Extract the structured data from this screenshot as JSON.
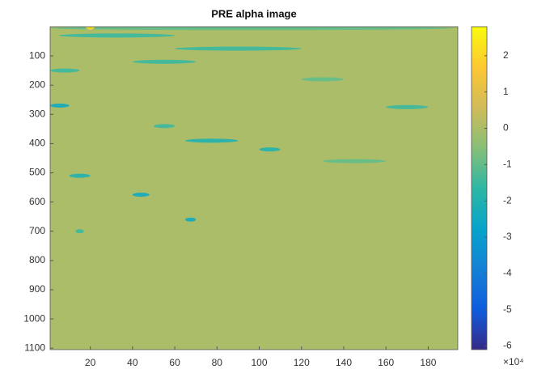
{
  "chart_data": {
    "type": "image",
    "title": "PRE alpha image",
    "xlim": [
      1,
      194
    ],
    "xticks": [
      20,
      40,
      60,
      80,
      100,
      120,
      140,
      160,
      180
    ],
    "ylim": [
      0,
      1105
    ],
    "yticks": [
      100,
      200,
      300,
      400,
      500,
      600,
      700,
      800,
      900,
      1000,
      1100
    ],
    "background_value": 0,
    "streaks": [
      {
        "x": [
          1,
          192
        ],
        "y": 5,
        "value": -1
      },
      {
        "x": [
          18,
          22
        ],
        "y": 3,
        "value": 2
      },
      {
        "x": [
          5,
          60
        ],
        "y": 30,
        "value": -1.5
      },
      {
        "x": [
          60,
          120
        ],
        "y": 75,
        "value": -1.5
      },
      {
        "x": [
          40,
          70
        ],
        "y": 120,
        "value": -1.5
      },
      {
        "x": [
          1,
          15
        ],
        "y": 150,
        "value": -1.5
      },
      {
        "x": [
          120,
          140
        ],
        "y": 180,
        "value": -1
      },
      {
        "x": [
          1,
          10
        ],
        "y": 270,
        "value": -2.5
      },
      {
        "x": [
          160,
          180
        ],
        "y": 275,
        "value": -1.5
      },
      {
        "x": [
          50,
          60
        ],
        "y": 340,
        "value": -1.5
      },
      {
        "x": [
          65,
          90
        ],
        "y": 390,
        "value": -2
      },
      {
        "x": [
          100,
          110
        ],
        "y": 420,
        "value": -2
      },
      {
        "x": [
          130,
          160
        ],
        "y": 460,
        "value": -1
      },
      {
        "x": [
          10,
          20
        ],
        "y": 510,
        "value": -2
      },
      {
        "x": [
          40,
          48
        ],
        "y": 575,
        "value": -2.5
      },
      {
        "x": [
          65,
          70
        ],
        "y": 660,
        "value": -2.5
      },
      {
        "x": [
          13,
          17
        ],
        "y": 700,
        "value": -1.5
      }
    ],
    "colorbar": {
      "clim": [
        -6.1,
        2.8
      ],
      "ticks": [
        -6,
        -5,
        -4,
        -3,
        -2,
        -1,
        0,
        1,
        2
      ],
      "exponent_label": "×10⁴"
    }
  }
}
